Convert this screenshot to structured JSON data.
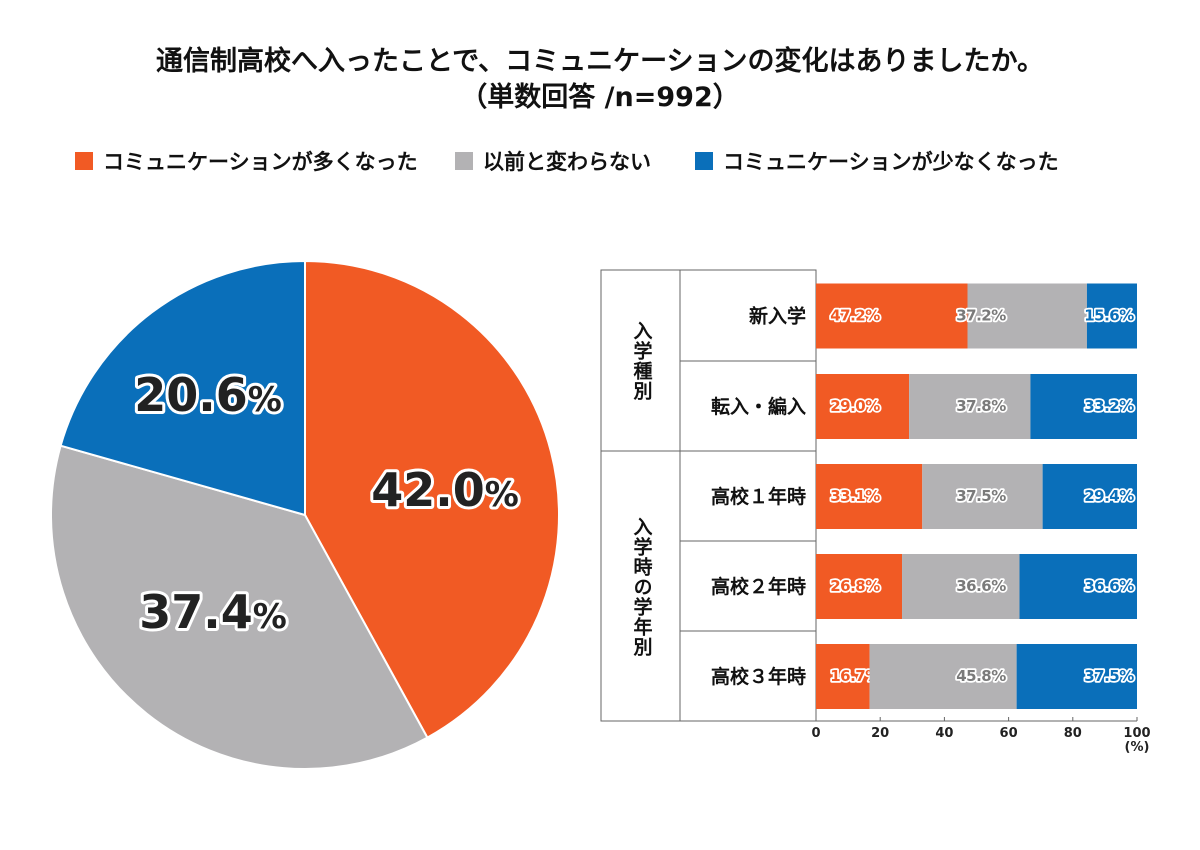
{
  "chart_data": [
    {
      "type": "pie",
      "title": "通信制高校へ入ったことで、コミュニケーションの変化はありましたか。",
      "subtitle": "（単数回答 /n=992）",
      "legend": [
        "コミュニケーションが多くなった",
        "以前と変わらない",
        "コミュニケーションが少なくなった"
      ],
      "legend_placement": "top",
      "colors": [
        "#f15a24",
        "#b3b2b4",
        "#0a6fba"
      ],
      "values": [
        42.0,
        37.4,
        20.6
      ],
      "labels": [
        "42.0",
        "37.4",
        "20.6"
      ],
      "unit": "%"
    },
    {
      "type": "bar",
      "stacked": true,
      "orientation": "horizontal",
      "groups": [
        {
          "label": "入学種別",
          "rows": [
            0,
            1
          ]
        },
        {
          "label": "入学時の学年別",
          "rows": [
            2,
            3,
            4
          ]
        }
      ],
      "categories": [
        "新入学",
        "転入・編入",
        "高校１年時",
        "高校２年時",
        "高校３年時"
      ],
      "series": [
        {
          "name": "コミュニケーションが多くなった",
          "color": "#f15a24",
          "values": [
            47.2,
            29.0,
            33.1,
            26.8,
            16.7
          ],
          "labels": [
            "47.2%",
            "29.0%",
            "33.1%",
            "26.8%",
            "16.7%"
          ]
        },
        {
          "name": "以前と変わらない",
          "color": "#b3b2b4",
          "values": [
            37.2,
            37.8,
            37.5,
            36.6,
            45.8
          ],
          "labels": [
            "37.2%",
            "37.8%",
            "37.5%",
            "36.6%",
            "45.8%"
          ]
        },
        {
          "name": "コミュニケーションが少なくなった",
          "color": "#0a6fba",
          "values": [
            15.6,
            33.2,
            29.4,
            36.6,
            37.5
          ],
          "labels": [
            "15.6%",
            "33.2%",
            "29.4%",
            "36.6%",
            "37.5%"
          ]
        }
      ],
      "xlim": [
        0,
        100
      ],
      "xticks": [
        "0",
        "20",
        "40",
        "60",
        "80",
        "100"
      ],
      "xlabel": "(%)",
      "label_colors": [
        "#f15a24",
        "#7a7a7a",
        "#0a6fba"
      ]
    }
  ]
}
